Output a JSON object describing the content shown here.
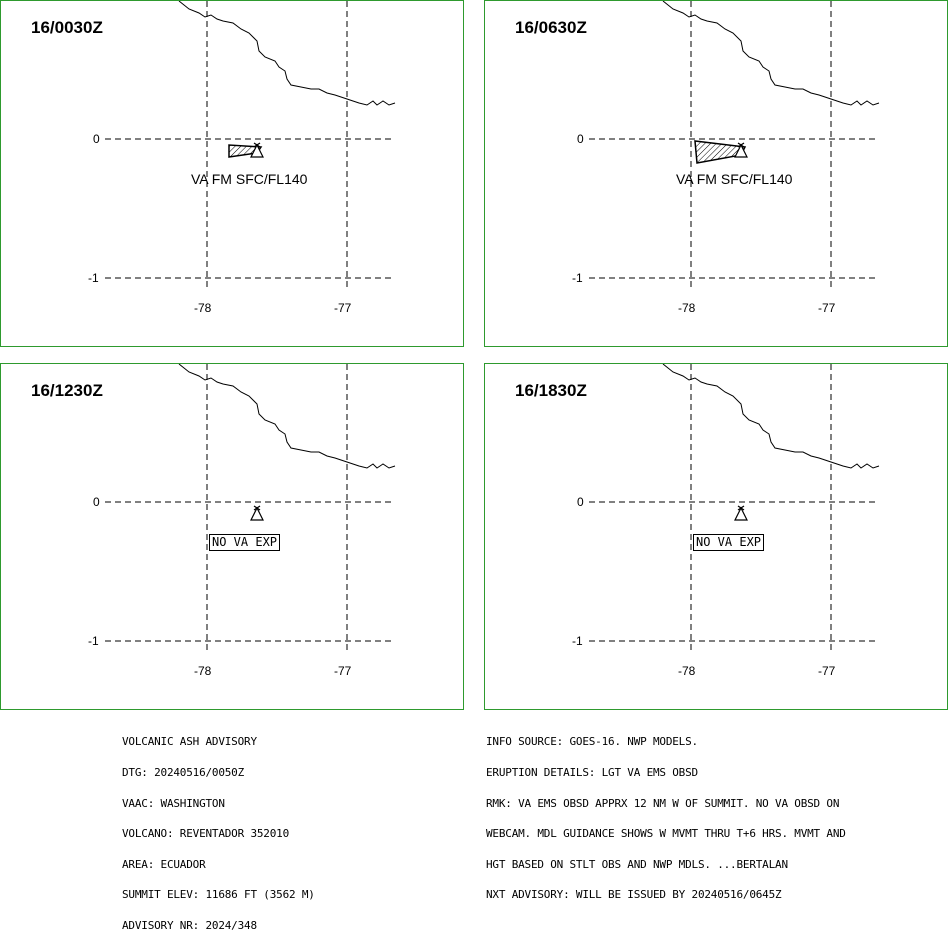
{
  "panels": [
    {
      "valid_time": "16/0030Z",
      "label": "VA FM SFC/FL140",
      "polygon": "small"
    },
    {
      "valid_time": "16/0630Z",
      "label": "VA FM SFC/FL140",
      "polygon": "large"
    },
    {
      "valid_time": "16/1230Z",
      "label": "NO VA EXP",
      "polygon": "none"
    },
    {
      "valid_time": "16/1830Z",
      "label": "NO VA EXP",
      "polygon": "none"
    }
  ],
  "axis": {
    "lat_top": "0",
    "lat_bottom": "-1",
    "lon_left": "-78",
    "lon_right": "-77"
  },
  "advisory_left": [
    "VOLCANIC ASH ADVISORY",
    "DTG: 20240516/0050Z",
    "VAAC: WASHINGTON",
    "VOLCANO: REVENTADOR 352010",
    "AREA: ECUADOR",
    "SUMMIT ELEV: 11686 FT (3562 M)",
    "ADVISORY NR: 2024/348"
  ],
  "advisory_right": [
    "INFO SOURCE: GOES-16. NWP MODELS.",
    "ERUPTION DETAILS: LGT VA EMS OBSD",
    "RMK: VA EMS OBSD APPRX 12 NM W OF SUMMIT. NO VA OBSD ON",
    "WEBCAM. MDL GUIDANCE SHOWS W MVMT THRU T+6 HRS. MVMT AND",
    "HGT BASED ON STLT OBS AND NWP MDLS. ...BERTALAN",
    "NXT ADVISORY: WILL BE ISSUED BY 20240516/0645Z"
  ],
  "colors": {
    "panel_border": "#2e9a2e",
    "lines": "#000000"
  },
  "icons": {
    "volcano": "volcano-triangle-icon"
  }
}
